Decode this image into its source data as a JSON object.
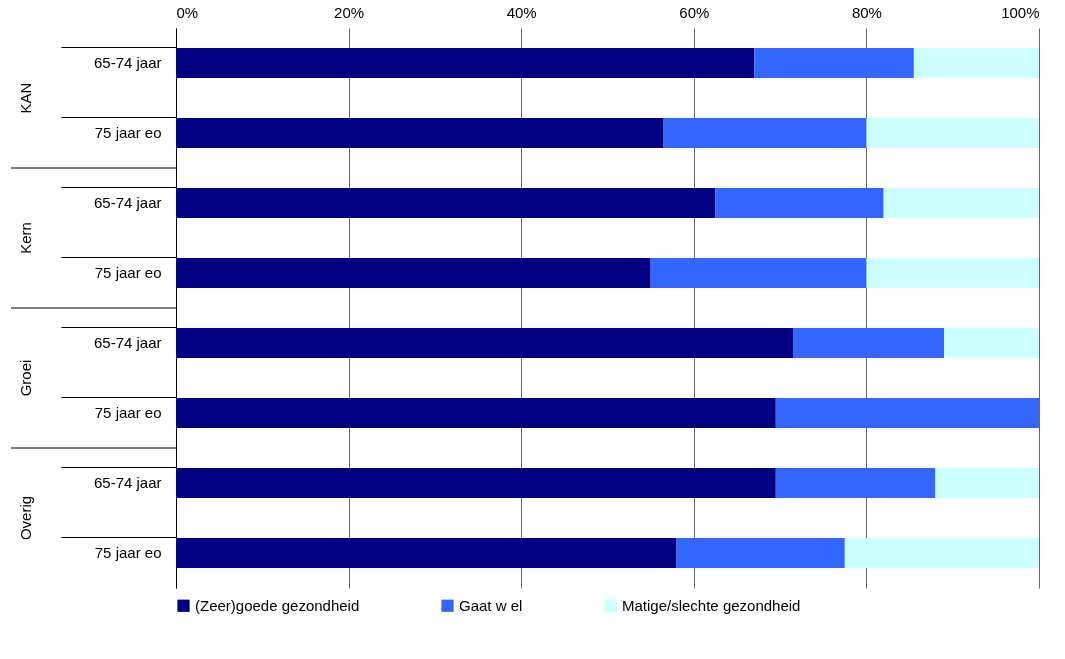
{
  "chart_data": {
    "type": "bar",
    "orientation": "horizontal",
    "stacked": true,
    "categories": [
      "65-74 jaar",
      "75 jaar eo",
      "65-74 jaar",
      "75 jaar eo",
      "65-74 jaar",
      "75 jaar eo",
      "65-74 jaar",
      "75 jaar eo"
    ],
    "annotations": [
      "KAN",
      "Kern",
      "Groei",
      "Overig"
    ],
    "series": [
      {
        "name": "(Zeer)goede gezondheid",
        "color": "#000080",
        "values": [
          67,
          56.5,
          62.5,
          55,
          71.5,
          69.5,
          69.5,
          58
        ]
      },
      {
        "name": "Gaat w el",
        "color": "#3366ff",
        "values": [
          18.5,
          23.5,
          19.5,
          25,
          17.5,
          30.5,
          18.5,
          19.5
        ]
      },
      {
        "name": "Matige/slechte gezondheid",
        "color": "#ccffff",
        "values": [
          14.5,
          20,
          18,
          20,
          11,
          0,
          12,
          22.5
        ]
      }
    ],
    "xlim": [
      0,
      100
    ],
    "xticks": [
      {
        "value": 0,
        "label": "0%"
      },
      {
        "value": 20,
        "label": "20%"
      },
      {
        "value": 40,
        "label": "40%"
      },
      {
        "value": 60,
        "label": "60%"
      },
      {
        "value": 80,
        "label": "80%"
      },
      {
        "value": 100,
        "label": "100%"
      }
    ],
    "grid": "x",
    "legend": "bottom"
  }
}
